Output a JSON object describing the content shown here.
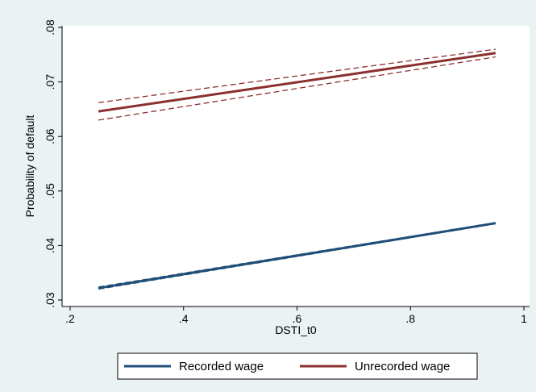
{
  "chart_data": {
    "type": "line",
    "xlabel": "DSTI_t0",
    "ylabel": "Probability of default",
    "xlim": [
      0.2,
      1.0
    ],
    "ylim": [
      0.03,
      0.08
    ],
    "x_ticks": [
      0.2,
      0.4,
      0.6,
      0.8,
      1.0
    ],
    "x_tick_labels": [
      ".2",
      ".4",
      ".6",
      ".8",
      "1"
    ],
    "y_ticks": [
      0.03,
      0.04,
      0.05,
      0.06,
      0.07,
      0.08
    ],
    "y_tick_labels": [
      ".03",
      ".04",
      ".05",
      ".06",
      ".07",
      ".08"
    ],
    "grid": false,
    "legend_position": "bottom",
    "series": [
      {
        "name": "Recorded wage",
        "color": "#1f4e79",
        "x": [
          0.25,
          0.95
        ],
        "values": [
          0.0322,
          0.0441
        ],
        "ci_lower": [
          0.032,
          0.044
        ],
        "ci_upper": [
          0.0324,
          0.0442
        ]
      },
      {
        "name": "Unrecorded wage",
        "color": "#8b2f2f",
        "x": [
          0.25,
          0.95
        ],
        "values": [
          0.0646,
          0.0753
        ],
        "ci_lower": [
          0.063,
          0.0746
        ],
        "ci_upper": [
          0.0662,
          0.076
        ]
      }
    ]
  }
}
